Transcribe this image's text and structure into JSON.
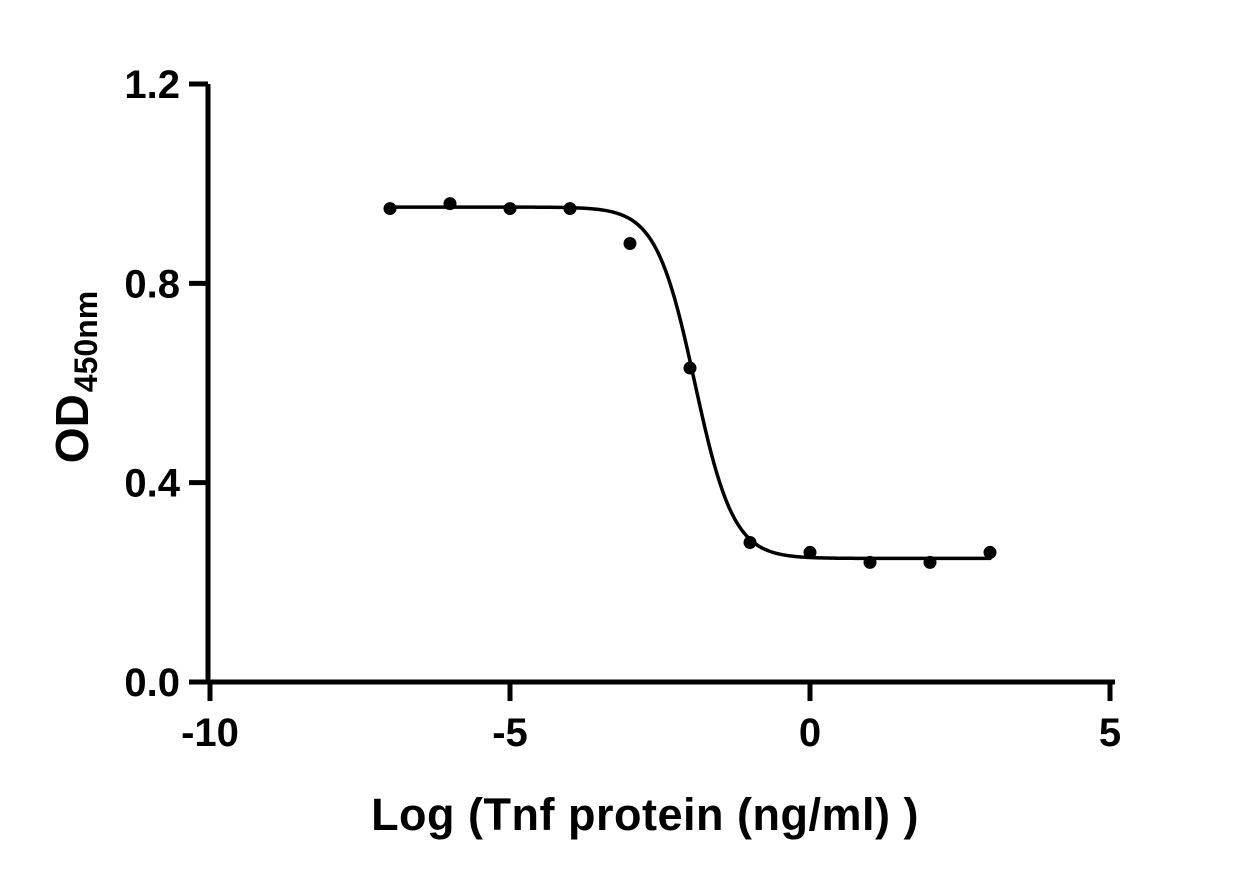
{
  "figure": {
    "background_color": "#ffffff"
  },
  "chart_data": {
    "type": "scatter",
    "title": "",
    "xlabel": "Log (Tnf protein (ng/ml) )",
    "ylabel_main": "OD",
    "ylabel_sub": "450nm",
    "xlim": [
      -10,
      5
    ],
    "ylim": [
      0,
      1.2
    ],
    "x_tick_values": [
      -10,
      -5,
      0,
      5
    ],
    "x_tick_labels": [
      "-10",
      "-5",
      "0",
      "5"
    ],
    "y_tick_values": [
      0,
      0.4,
      0.8,
      1.2
    ],
    "y_tick_labels": [
      "0.0",
      "0.4",
      "0.8",
      "1.2"
    ],
    "grid": false,
    "legend": "none",
    "points": [
      {
        "x": -7,
        "y": 0.95
      },
      {
        "x": -6,
        "y": 0.96
      },
      {
        "x": -5,
        "y": 0.95
      },
      {
        "x": -4,
        "y": 0.95
      },
      {
        "x": -3,
        "y": 0.88
      },
      {
        "x": -2,
        "y": 0.63
      },
      {
        "x": -1,
        "y": 0.28
      },
      {
        "x": 0,
        "y": 0.26
      },
      {
        "x": 1,
        "y": 0.24
      },
      {
        "x": 2,
        "y": 0.24
      },
      {
        "x": 3,
        "y": 0.26
      }
    ],
    "curve_fit": {
      "model": "four_parameter_logistic_decreasing",
      "top": 0.953,
      "bottom": 0.248,
      "log_ic50": -1.92,
      "hill_slope": 1.35,
      "x_start": -7,
      "x_end": 3
    },
    "colors": {
      "axis": "#000000",
      "marker": "#000000",
      "line": "#000000",
      "tick_label": "#000000",
      "background": "#ffffff"
    }
  }
}
